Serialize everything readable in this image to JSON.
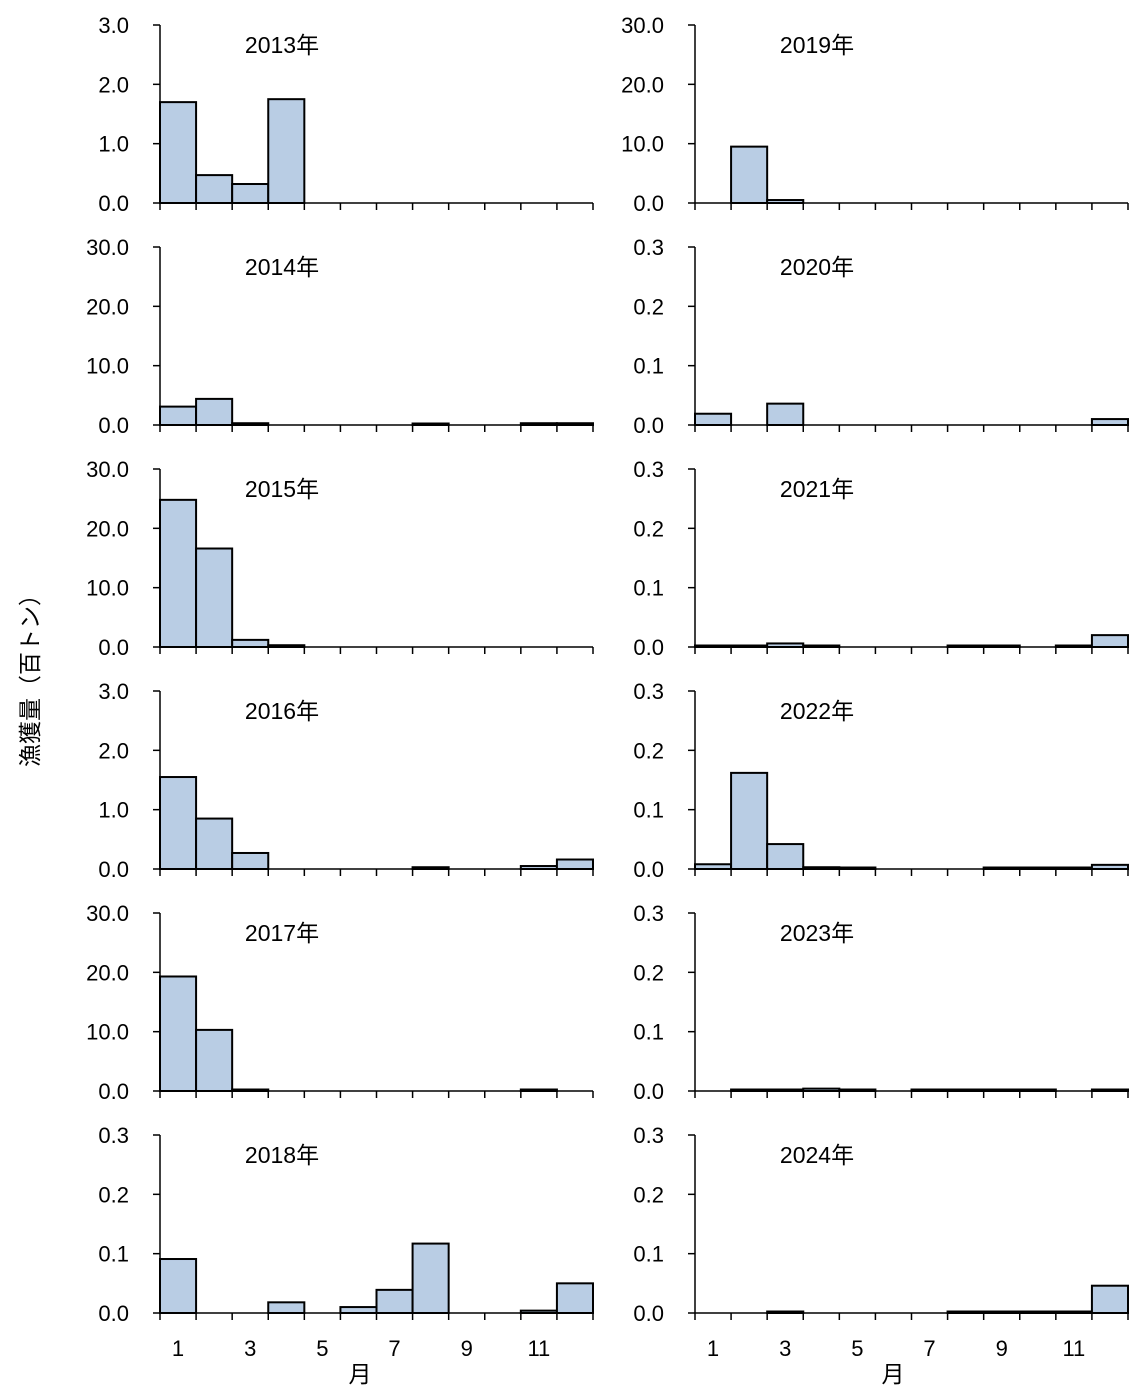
{
  "chart_data": {
    "type": "bar",
    "ylabel": "漁獲量（百トン）",
    "xlabel": "月",
    "x_tick_labels": [
      "1",
      "3",
      "5",
      "7",
      "9",
      "11"
    ],
    "months": [
      1,
      2,
      3,
      4,
      5,
      6,
      7,
      8,
      9,
      10,
      11,
      12
    ],
    "bar_color": "#b9cde4",
    "bar_edge_color": "#000000",
    "grid": false,
    "legend": "none",
    "panels": [
      {
        "title": "2013年",
        "column": "left",
        "row": 0,
        "yticks": [
          "0.0",
          "1.0",
          "2.0",
          "3.0"
        ],
        "ylim": [
          0,
          3
        ],
        "values": [
          1.7,
          0.47,
          0.32,
          1.75,
          0,
          0,
          0,
          0,
          0,
          0,
          0,
          0
        ]
      },
      {
        "title": "2014年",
        "column": "left",
        "row": 1,
        "yticks": [
          "0.0",
          "10.0",
          "20.0",
          "30.0"
        ],
        "ylim": [
          0,
          30
        ],
        "values": [
          3.1,
          4.4,
          0.3,
          0,
          0,
          0,
          0,
          0.2,
          0,
          0,
          0.3,
          0.3
        ]
      },
      {
        "title": "2015年",
        "column": "left",
        "row": 2,
        "yticks": [
          "0.0",
          "10.0",
          "20.0",
          "30.0"
        ],
        "ylim": [
          0,
          30
        ],
        "values": [
          24.8,
          16.6,
          1.2,
          0.3,
          0,
          0,
          0,
          0,
          0,
          0,
          0,
          0
        ]
      },
      {
        "title": "2016年",
        "column": "left",
        "row": 3,
        "yticks": [
          "0.0",
          "1.0",
          "2.0",
          "3.0"
        ],
        "ylim": [
          0,
          3
        ],
        "values": [
          1.55,
          0.85,
          0.27,
          0,
          0,
          0,
          0,
          0.03,
          0,
          0,
          0.05,
          0.16
        ]
      },
      {
        "title": "2017年",
        "column": "left",
        "row": 4,
        "yticks": [
          "0.0",
          "10.0",
          "20.0",
          "30.0"
        ],
        "ylim": [
          0,
          30
        ],
        "values": [
          19.3,
          10.3,
          0.2,
          0,
          0,
          0,
          0,
          0,
          0,
          0,
          0.2,
          0
        ]
      },
      {
        "title": "2018年",
        "column": "left",
        "row": 5,
        "yticks": [
          "0.0",
          "0.1",
          "0.2",
          "0.3"
        ],
        "ylim": [
          0,
          0.3
        ],
        "values": [
          0.091,
          0,
          0,
          0.018,
          0,
          0.01,
          0.039,
          0.117,
          0,
          0,
          0.004,
          0.05
        ]
      },
      {
        "title": "2019年",
        "column": "right",
        "row": 0,
        "yticks": [
          "0.0",
          "10.0",
          "20.0",
          "30.0"
        ],
        "ylim": [
          0,
          30
        ],
        "values": [
          0,
          9.5,
          0.5,
          0,
          0,
          0,
          0,
          0,
          0,
          0,
          0,
          0
        ]
      },
      {
        "title": "2020年",
        "column": "right",
        "row": 1,
        "yticks": [
          "0.0",
          "0.1",
          "0.2",
          "0.3"
        ],
        "ylim": [
          0,
          0.3
        ],
        "values": [
          0.019,
          0,
          0.036,
          0,
          0,
          0,
          0,
          0,
          0,
          0,
          0,
          0.01
        ]
      },
      {
        "title": "2021年",
        "column": "right",
        "row": 2,
        "yticks": [
          "0.0",
          "0.1",
          "0.2",
          "0.3"
        ],
        "ylim": [
          0,
          0.3
        ],
        "values": [
          0.002,
          0.002,
          0.006,
          0.002,
          0,
          0,
          0,
          0.002,
          0.002,
          0,
          0.002,
          0.02
        ]
      },
      {
        "title": "2022年",
        "column": "right",
        "row": 3,
        "yticks": [
          "0.0",
          "0.1",
          "0.2",
          "0.3"
        ],
        "ylim": [
          0,
          0.3
        ],
        "values": [
          0.008,
          0.162,
          0.042,
          0.003,
          0.002,
          0,
          0,
          0,
          0.002,
          0.002,
          0.002,
          0.007
        ]
      },
      {
        "title": "2023年",
        "column": "right",
        "row": 4,
        "yticks": [
          "0.0",
          "0.1",
          "0.2",
          "0.3"
        ],
        "ylim": [
          0,
          0.3
        ],
        "values": [
          0,
          0.002,
          0.002,
          0.004,
          0.002,
          0,
          0.002,
          0.002,
          0.002,
          0.002,
          0,
          0.002
        ]
      },
      {
        "title": "2024年",
        "column": "right",
        "row": 5,
        "yticks": [
          "0.0",
          "0.1",
          "0.2",
          "0.3"
        ],
        "ylim": [
          0,
          0.3
        ],
        "values": [
          0,
          0,
          0.002,
          0,
          0,
          0,
          0,
          0.002,
          0.002,
          0.002,
          0.002,
          0.046
        ]
      }
    ]
  }
}
